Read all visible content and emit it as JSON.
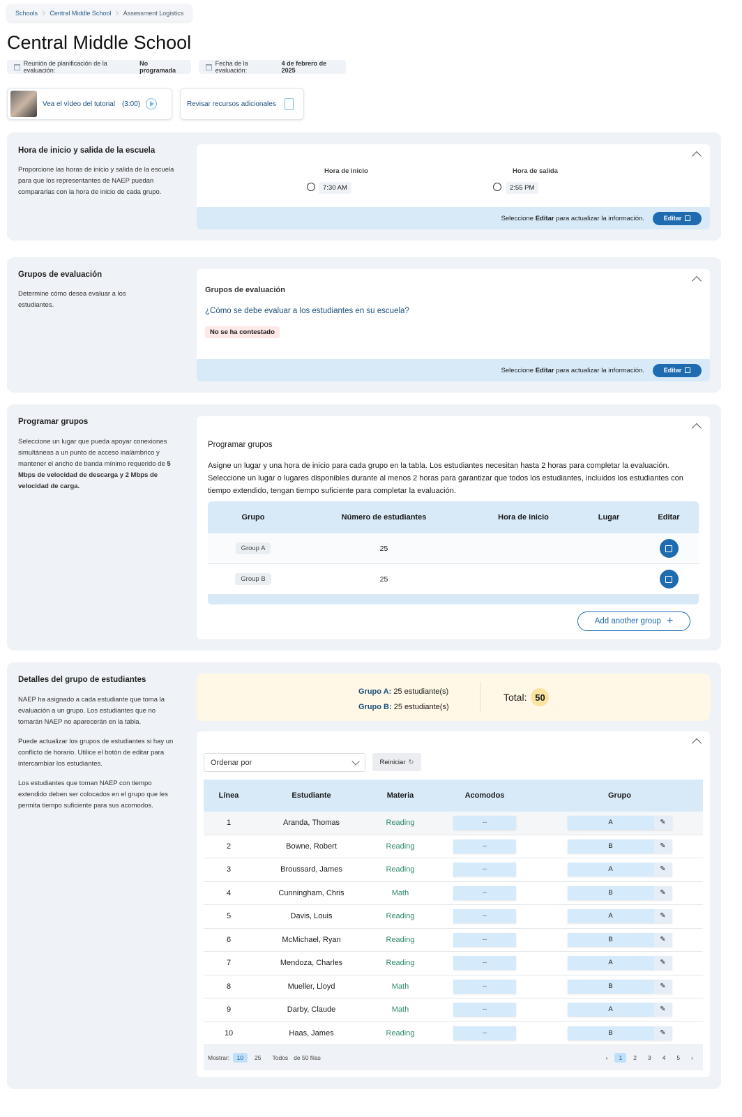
{
  "breadcrumb": [
    "Schools",
    "Central Middle School",
    "Assessment Logistics"
  ],
  "page_title": "Central Middle School",
  "meta": {
    "planning_label": "Reunión de planificación de la evaluación:",
    "planning_value": "No programada",
    "date_label": "Fecha de la evaluación:",
    "date_value": "4 de febrero de 2025"
  },
  "resources": {
    "video_label": "Vea el vídeo del tutorial",
    "video_duration": "(3:00)",
    "additional_label": "Revisar recursos adicionales"
  },
  "footer_hint": {
    "pre": "Seleccione ",
    "bold": "Editar",
    "post": " para actualizar la información.",
    "edit": "Editar"
  },
  "hours": {
    "title": "Hora de inicio y salida de la escuela",
    "desc": "Proporcione las horas de inicio y salida de la escuela para que los representantes de NAEP puedan compararlas con la hora de inicio de cada grupo.",
    "start_label": "Hora de inicio",
    "start_value": "7:30 AM",
    "end_label": "Hora de salida",
    "end_value": "2:55 PM"
  },
  "groups": {
    "title": "Grupos de evaluación",
    "desc": "Determine cómo desea evaluar a los estudiantes.",
    "card_title": "Grupos de evaluación",
    "question": "¿Cómo se debe evaluar a los estudiantes en su escuela?",
    "status": "No se ha contestado"
  },
  "schedule": {
    "title": "Programar grupos",
    "desc_pre": "Seleccione un lugar que pueda apoyar conexiones simultáneas a un punto de acceso inalámbrico y mantener el ancho de banda mínimo requerido de ",
    "desc_bold": "5 Mbps de velocidad de descarga y 2 Mbps de velocidad de carga.",
    "card_title": "Programar grupos",
    "instructions": "Asigne un lugar y una hora de inicio para cada grupo en la tabla. Los estudiantes necesitan hasta 2 horas para completar la evaluación. Seleccione un lugar o lugares disponibles durante al menos 2 horas para garantizar que todos los estudiantes, incluidos los estudiantes con tiempo extendido, tengan tiempo suficiente para completar la evaluación.",
    "columns": [
      "Grupo",
      "Número de estudiantes",
      "Hora de inicio",
      "Lugar",
      "Editar"
    ],
    "rows": [
      {
        "group": "Group A",
        "count": "25",
        "start": "",
        "place": ""
      },
      {
        "group": "Group B",
        "count": "25",
        "start": "",
        "place": ""
      }
    ],
    "add_label": "Add another group"
  },
  "students": {
    "title": "Detalles del grupo de estudiantes",
    "desc": [
      "NAEP ha asignado a cada estudiante que toma la evaluación a un grupo. Los estudiantes que no tomarán NAEP no aparecerán en la tabla.",
      "Puede actualizar los grupos de estudiantes si hay un conflicto de horario. Utilice el botón de editar para intercambiar los estudiantes.",
      "Los estudiantes que toman NAEP con tiempo extendido deben ser colocados en el grupo que les permita tiempo suficiente para sus acomodos."
    ],
    "summary": {
      "a_label": "Grupo A:",
      "a_value": "25 estudiante(s)",
      "b_label": "Grupo B:",
      "b_value": "25 estudiante(s)",
      "total_label": "Total:",
      "total": "50"
    },
    "sort_placeholder": "Ordenar por",
    "reset": "Reiniciar",
    "columns": [
      "Línea",
      "Estudiante",
      "Materia",
      "Acomodos",
      "Grupo"
    ],
    "rows": [
      {
        "line": "1",
        "name": "Aranda, Thomas",
        "subject": "Reading",
        "acc": "--",
        "group": "A"
      },
      {
        "line": "2",
        "name": "Bowne, Robert",
        "subject": "Reading",
        "acc": "--",
        "group": "B"
      },
      {
        "line": "3",
        "name": "Broussard, James",
        "subject": "Reading",
        "acc": "--",
        "group": "A"
      },
      {
        "line": "4",
        "name": "Cunningham, Chris",
        "subject": "Math",
        "acc": "--",
        "group": "B"
      },
      {
        "line": "5",
        "name": "Davis, Louis",
        "subject": "Reading",
        "acc": "--",
        "group": "A"
      },
      {
        "line": "6",
        "name": "McMichael, Ryan",
        "subject": "Reading",
        "acc": "--",
        "group": "B"
      },
      {
        "line": "7",
        "name": "Mendoza, Charles",
        "subject": "Reading",
        "acc": "--",
        "group": "A"
      },
      {
        "line": "8",
        "name": "Mueller, Lloyd",
        "subject": "Math",
        "acc": "--",
        "group": "B"
      },
      {
        "line": "9",
        "name": "Darby, Claude",
        "subject": "Math",
        "acc": "--",
        "group": "A"
      },
      {
        "line": "10",
        "name": "Haas, James",
        "subject": "Reading",
        "acc": "--",
        "group": "B"
      }
    ],
    "pagination": {
      "show_label": "Mostrar:",
      "sizes": [
        "10",
        "25",
        "Todos"
      ],
      "of_rows": "de 50 filas",
      "pages": [
        "1",
        "2",
        "3",
        "4",
        "5"
      ],
      "current": "1"
    }
  },
  "colors": {
    "primary": "#1f6bb0",
    "section_bg": "#eff2f6",
    "header_bg": "#d8eaf8",
    "subject": "#2e8a6e",
    "summary_bg": "#fff8e6"
  }
}
